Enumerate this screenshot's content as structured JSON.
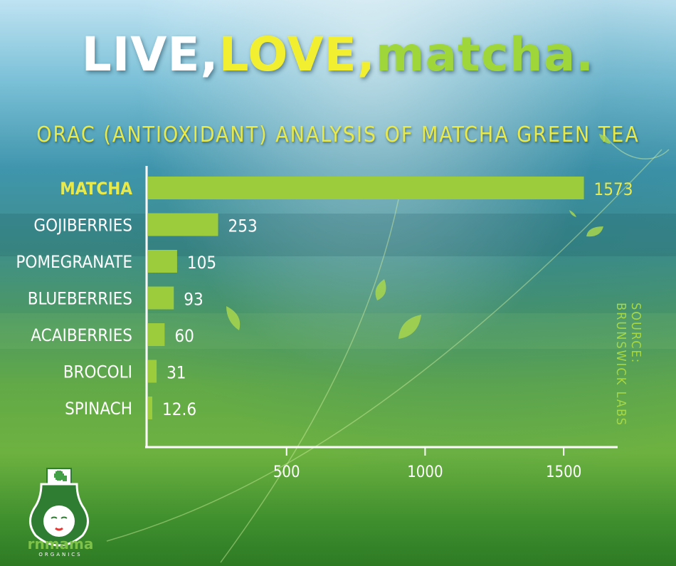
{
  "headline": {
    "part1": "LIVE,",
    "part2": "LOVE,",
    "part3": "matcha."
  },
  "chart_data": {
    "type": "bar",
    "orientation": "horizontal",
    "title": "ORAC (ANTIOXIDANT) ANALYSIS OF MATCHA GREEN TEA",
    "categories": [
      "MATCHA",
      "GOJIBERRIES",
      "POMEGRANATE",
      "BLUEBERRIES",
      "ACAIBERRIES",
      "BROCOLI",
      "SPINACH"
    ],
    "values": [
      1573,
      253,
      105,
      93,
      60,
      31,
      12.6
    ],
    "value_labels": [
      "1573",
      "253",
      "105",
      "93",
      "60",
      "31",
      "12.6"
    ],
    "highlight": "MATCHA",
    "xticks": [
      500,
      1000,
      1500
    ],
    "xtick_labels": [
      "500",
      "1000",
      "1500"
    ],
    "xlim": [
      0,
      1700
    ],
    "grid": false,
    "source": "SOURCE: BRUNSWICK LABS",
    "colors": {
      "bar": "#9ccc3c",
      "highlight_text": "#e9e94a",
      "text": "#ffffff",
      "source": "#a6d844"
    }
  },
  "logo": {
    "name": "rnmama",
    "tagline": "ORGANICS"
  }
}
